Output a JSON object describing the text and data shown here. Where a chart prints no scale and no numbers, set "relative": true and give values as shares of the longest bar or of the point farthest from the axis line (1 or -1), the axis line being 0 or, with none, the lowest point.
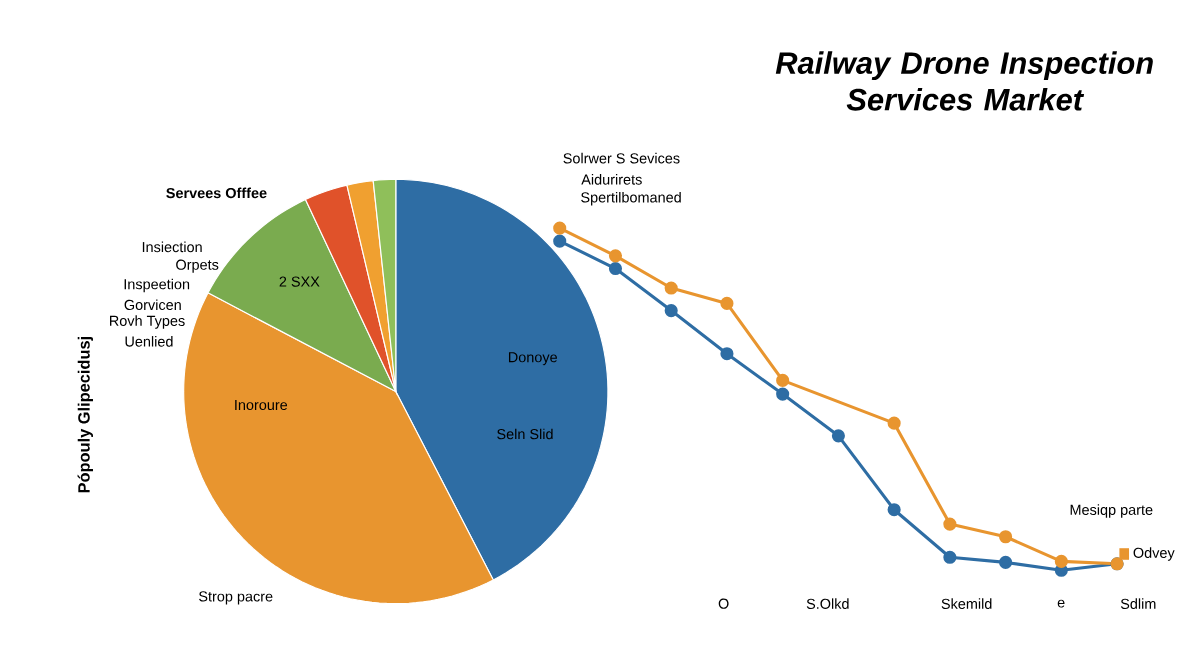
{
  "chart_data": [
    {
      "type": "pie",
      "title": "Railway Drone Inspection Services Market",
      "ylabel": "Pópouly Glipecidusj",
      "categories": [
        null,
        null,
        null,
        null,
        null,
        null
      ],
      "values": [
        42.4,
        40.3,
        10.3,
        3.3,
        2,
        1.7
      ],
      "colors": [
        "#2e6da4",
        "#e8952f",
        "#7aab4f",
        "#e0522a",
        "#f0a030",
        "#8fbf5a"
      ],
      "annotations": [
        "Servees Offfee",
        "Insiection",
        "Orpets",
        "Inspeetion",
        "Gorvicen",
        "Rovh Types",
        "Uenlied",
        "2 SXX",
        "Donoye",
        "Seln Slid",
        "Inoroure",
        "Strop pacre",
        "Solrwer S Sevices",
        "Aidurirets",
        "Spertilbomaned"
      ]
    },
    {
      "type": "line",
      "relative": true,
      "legend": "right",
      "marker": "circle",
      "categories": [
        null,
        null,
        null,
        null,
        null,
        null,
        null,
        null,
        null,
        null,
        null
      ],
      "series": [
        {
          "color": "#2e6da4",
          "values": [
            0.962,
            0.882,
            0.759,
            0.633,
            0.515,
            0.393,
            0.177,
            0.038,
            0.023,
            0,
            0.019
          ]
        },
        {
          "name": "Odvey",
          "color": "#e8952f",
          "values": [
            1.0,
            0.919,
            0.825,
            0.78,
            0.555,
            null,
            0.43,
            0.135,
            0.098,
            0.026,
            0.019
          ]
        }
      ],
      "annotations": [
        "O",
        "S.Olkd",
        "Skemild",
        "e",
        "Sdlim",
        "Mesiqp parte"
      ]
    }
  ]
}
